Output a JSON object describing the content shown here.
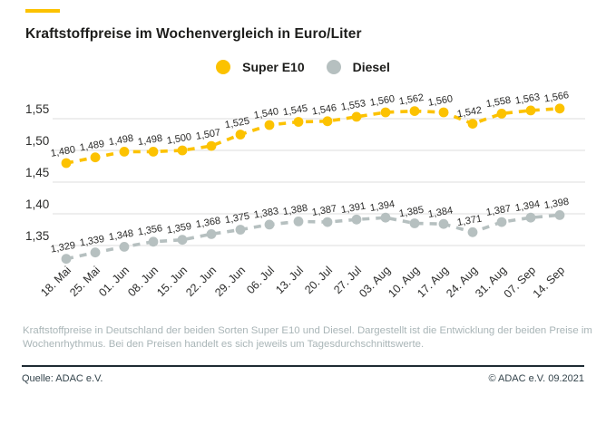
{
  "page": {
    "title": "Kraftstoffpreise im Wochenvergleich in Euro/Liter",
    "accent_color": "#FCC200"
  },
  "legend": {
    "items": [
      {
        "label": "Super E10",
        "color": "#FCC200"
      },
      {
        "label": "Diesel",
        "color": "#B6C0C0"
      }
    ]
  },
  "chart_data": {
    "type": "line",
    "title": "Kraftstoffpreise im Wochenvergleich in Euro/Liter",
    "categories": [
      "18. Mai",
      "25. Mai",
      "01. Jun",
      "08. Jun",
      "15. Jun",
      "22. Jun",
      "29. Jun",
      "06. Jul",
      "13. Jul",
      "20. Jul",
      "27. Jul",
      "03. Aug",
      "10. Aug",
      "17. Aug",
      "24. Aug",
      "31. Aug",
      "07. Sep",
      "14. Sep"
    ],
    "series": [
      {
        "name": "Super E10",
        "color": "#FCC200",
        "values": [
          1.48,
          1.489,
          1.498,
          1.498,
          1.5,
          1.507,
          1.525,
          1.54,
          1.545,
          1.546,
          1.553,
          1.56,
          1.562,
          1.56,
          1.542,
          1.558,
          1.563,
          1.566
        ]
      },
      {
        "name": "Diesel",
        "color": "#B6C0C0",
        "values": [
          1.329,
          1.339,
          1.348,
          1.356,
          1.359,
          1.368,
          1.375,
          1.383,
          1.388,
          1.387,
          1.391,
          1.394,
          1.385,
          1.384,
          1.371,
          1.387,
          1.394,
          1.398
        ]
      }
    ],
    "y_ticks": [
      1.55,
      1.5,
      1.45,
      1.4,
      1.35
    ],
    "ylim": [
      1.3,
      1.58
    ],
    "grid": true,
    "legend_position": "top",
    "decimal_separator": ",",
    "unit": "Euro/Liter",
    "line_style": "dashed",
    "point_labels": true
  },
  "footnote": {
    "text": "Kraftstoffpreise in Deutschland der beiden Sorten Super E10 und Diesel. Dargestellt ist die Entwicklung der beiden Preise im Wochenrhythmus. Bei den Preisen handelt es sich jeweils um Tagesdurchschnittswerte."
  },
  "footer": {
    "source": "Quelle: ADAC e.V.",
    "copyright": "© ADAC e.V. 09.2021"
  }
}
